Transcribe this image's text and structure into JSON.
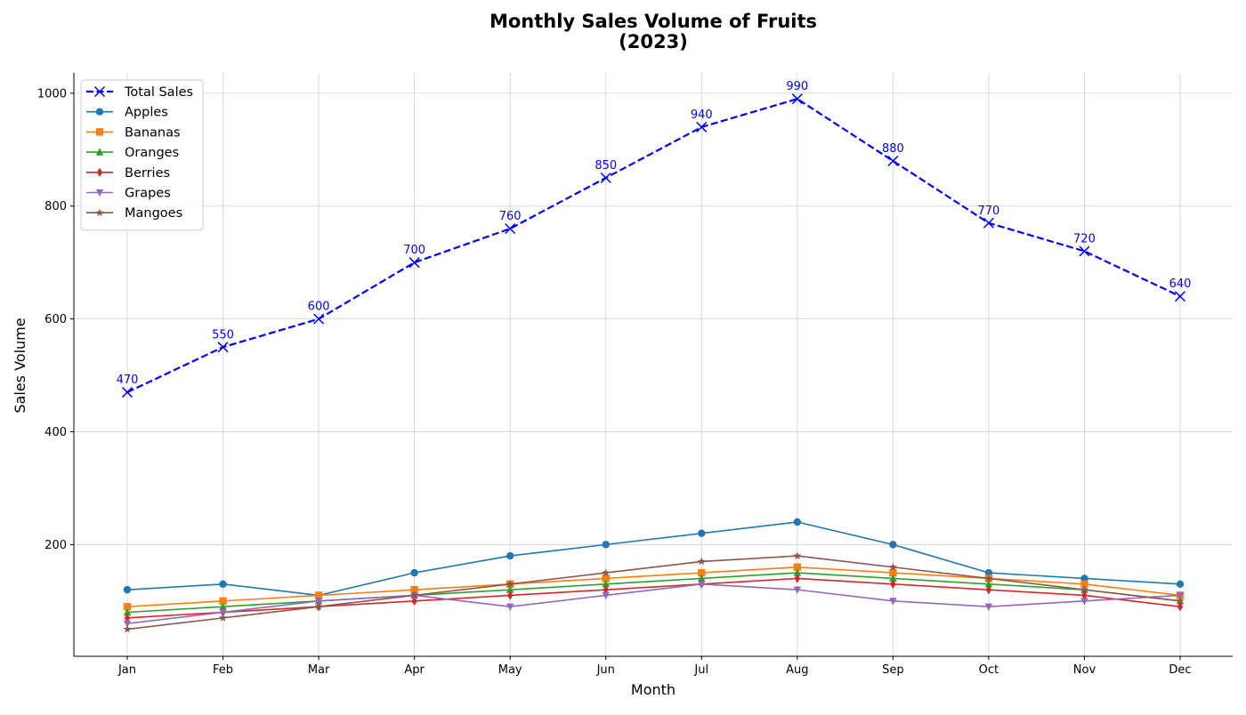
{
  "chart_data": {
    "type": "line",
    "title_line1": "Monthly Sales Volume of Fruits",
    "title_line2": "(2023)",
    "xlabel": "Month",
    "ylabel": "Sales Volume",
    "categories": [
      "Jan",
      "Feb",
      "Mar",
      "Apr",
      "May",
      "Jun",
      "Jul",
      "Aug",
      "Sep",
      "Oct",
      "Nov",
      "Dec"
    ],
    "ylim": [
      2,
      1036
    ],
    "yticks": [
      200,
      400,
      600,
      800,
      1000
    ],
    "grid": true,
    "legend_position": "top-left",
    "series": [
      {
        "name": "Total Sales",
        "color": "#0000ff",
        "marker": "x",
        "dashed": true,
        "labels": true,
        "values": [
          470,
          550,
          600,
          700,
          760,
          850,
          940,
          990,
          880,
          770,
          720,
          640
        ]
      },
      {
        "name": "Apples",
        "color": "#1f77b4",
        "marker": "circle",
        "values": [
          120,
          130,
          110,
          150,
          180,
          200,
          220,
          240,
          200,
          150,
          140,
          130
        ]
      },
      {
        "name": "Bananas",
        "color": "#ff7f0e",
        "marker": "square",
        "values": [
          90,
          100,
          110,
          120,
          130,
          140,
          150,
          160,
          150,
          140,
          130,
          110
        ]
      },
      {
        "name": "Oranges",
        "color": "#2ca02c",
        "marker": "triangle-up",
        "values": [
          80,
          90,
          100,
          110,
          120,
          130,
          140,
          150,
          140,
          130,
          120,
          100
        ]
      },
      {
        "name": "Berries",
        "color": "#d62728",
        "marker": "diamond",
        "values": [
          70,
          80,
          90,
          100,
          110,
          120,
          130,
          140,
          130,
          120,
          110,
          90
        ]
      },
      {
        "name": "Grapes",
        "color": "#9467bd",
        "marker": "triangle-down",
        "values": [
          60,
          80,
          100,
          110,
          90,
          110,
          130,
          120,
          100,
          90,
          100,
          110
        ]
      },
      {
        "name": "Mangoes",
        "color": "#8c564b",
        "marker": "star",
        "values": [
          50,
          70,
          90,
          110,
          130,
          150,
          170,
          180,
          160,
          140,
          120,
          100
        ]
      }
    ]
  }
}
